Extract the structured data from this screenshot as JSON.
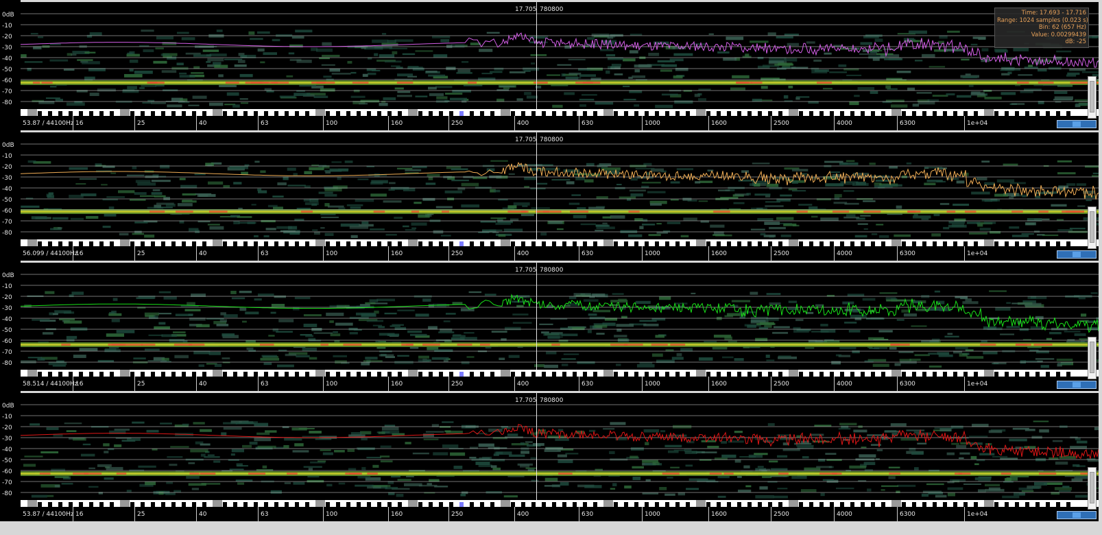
{
  "db_scale": [
    "0dB",
    "-10",
    "-20",
    "-30",
    "-40",
    "-50",
    "-60",
    "-70",
    "-80"
  ],
  "frequency_labels": [
    "16",
    "25",
    "40",
    "63",
    "100",
    "160",
    "250",
    "400",
    "630",
    "1000",
    "1600",
    "2500",
    "4000",
    "6300",
    "1e+04"
  ],
  "cursor": {
    "time": "17.705",
    "sample": "780800"
  },
  "tooltip": {
    "time": "Time: 17.693 - 17.716",
    "range": "Range: 1024 samples (0.023 s)",
    "bin": "Bin: 62 (657 Hz)",
    "value": "Value: 0.00299439",
    "db": "dB: -25"
  },
  "channels": [
    {
      "id": "ch1",
      "color": "#d35ee6",
      "sample_rate_label": "53.87 / 44100Hz",
      "level_db": -26
    },
    {
      "id": "ch2",
      "color": "#f0ad55",
      "sample_rate_label": "56.099 / 44100Hz",
      "level_db": -25
    },
    {
      "id": "ch3",
      "color": "#19e319",
      "sample_rate_label": "58.514 / 44100Hz",
      "level_db": -27
    },
    {
      "id": "ch4",
      "color": "#e01616",
      "sample_rate_label": "53.87 / 44100Hz",
      "level_db": -26
    }
  ]
}
